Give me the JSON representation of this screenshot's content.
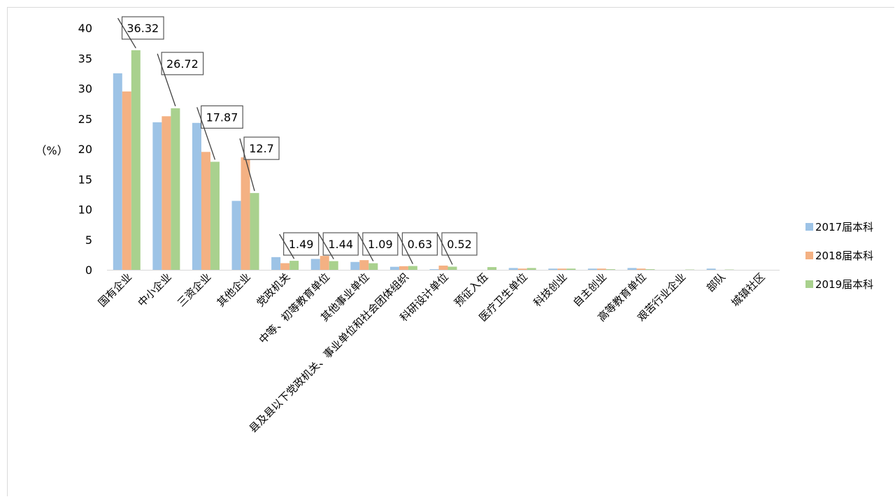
{
  "chart_data": {
    "type": "bar",
    "ylabel": "（%）",
    "ylim": [
      0,
      40
    ],
    "yticks": [
      0,
      5,
      10,
      15,
      20,
      25,
      30,
      35,
      40
    ],
    "categories": [
      "国有企业",
      "中小企业",
      "三资企业",
      "其他企业",
      "党政机关",
      "中等、初等教育单位",
      "其他事业单位",
      "县及县以下党政机关、事业单位和社会团体组织",
      "科研设计单位",
      "预征入伍",
      "医疗卫生单位",
      "科技创业",
      "自主创业",
      "高等教育单位",
      "艰苦行业企业",
      "部队",
      "城镇社区"
    ],
    "series": [
      {
        "name": "2017届本科",
        "color": "#9dc3e6",
        "values": [
          32.5,
          24.4,
          24.3,
          11.4,
          2.1,
          1.8,
          1.3,
          0.5,
          0.1,
          0.0,
          0.3,
          0.2,
          0.2,
          0.3,
          0.0,
          0.2,
          0.0
        ]
      },
      {
        "name": "2018届本科",
        "color": "#f4b183",
        "values": [
          29.5,
          25.4,
          19.5,
          18.6,
          1.1,
          2.3,
          1.6,
          0.6,
          0.7,
          0.0,
          0.2,
          0.2,
          0.2,
          0.2,
          0.0,
          0.0,
          0.0
        ]
      },
      {
        "name": "2019届本科",
        "color": "#a9d18e",
        "values": [
          36.32,
          26.72,
          17.87,
          12.7,
          1.49,
          1.44,
          1.09,
          0.63,
          0.52,
          0.45,
          0.3,
          0.2,
          0.1,
          0.1,
          0.05,
          0.05,
          0.0
        ]
      }
    ],
    "data_labels": [
      {
        "category_index": 0,
        "text": "36.32"
      },
      {
        "category_index": 1,
        "text": "26.72"
      },
      {
        "category_index": 2,
        "text": "17.87"
      },
      {
        "category_index": 3,
        "text": "12.7"
      },
      {
        "category_index": 4,
        "text": "1.49"
      },
      {
        "category_index": 5,
        "text": "1.44"
      },
      {
        "category_index": 6,
        "text": "1.09"
      },
      {
        "category_index": 7,
        "text": "0.63"
      },
      {
        "category_index": 8,
        "text": "0.52"
      }
    ],
    "legend_position": "right",
    "grid": false
  }
}
